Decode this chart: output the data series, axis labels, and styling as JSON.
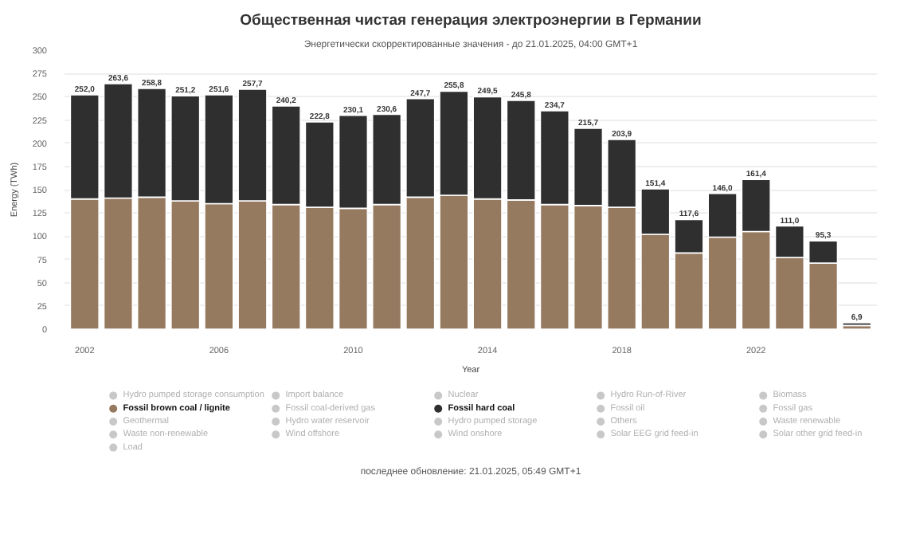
{
  "chart_data": {
    "type": "bar",
    "stacked": true,
    "title": "Общественная чистая генерация электроэнергии в Германии",
    "subtitle": "Энергетически скорректированные значения - до 21.01.2025, 04:00 GMT+1",
    "xlabel": "Year",
    "ylabel": "Energy (TWh)",
    "annotations": [
      "последнее обновление: 21.01.2025, 05:49 GMT+1"
    ],
    "x": [
      2002,
      2003,
      2004,
      2005,
      2006,
      2007,
      2008,
      2009,
      2010,
      2011,
      2012,
      2013,
      2014,
      2015,
      2016,
      2017,
      2018,
      2019,
      2020,
      2021,
      2022,
      2023,
      2024,
      2025
    ],
    "xlim": [
      2001.4,
      2025.6
    ],
    "xticks": [
      2002,
      2006,
      2010,
      2014,
      2018,
      2022
    ],
    "ylim": [
      0,
      300
    ],
    "yticks": [
      0,
      25,
      50,
      75,
      100,
      125,
      150,
      175,
      200,
      225,
      250,
      275,
      300
    ],
    "grid": "y",
    "legend": "bottom",
    "series": [
      {
        "name": "Hydro pumped storage consumption",
        "color": "#c8c8c8",
        "values": [
          null,
          null,
          null,
          null,
          null,
          null,
          null,
          null,
          null,
          null,
          null,
          null,
          null,
          null,
          null,
          null,
          null,
          null,
          null,
          null,
          null,
          null,
          null,
          null
        ]
      },
      {
        "name": "Import balance",
        "color": "#c8c8c8",
        "values": [
          null,
          null,
          null,
          null,
          null,
          null,
          null,
          null,
          null,
          null,
          null,
          null,
          null,
          null,
          null,
          null,
          null,
          null,
          null,
          null,
          null,
          null,
          null,
          null
        ]
      },
      {
        "name": "Nuclear",
        "color": "#c8c8c8",
        "values": [
          null,
          null,
          null,
          null,
          null,
          null,
          null,
          null,
          null,
          null,
          null,
          null,
          null,
          null,
          null,
          null,
          null,
          null,
          null,
          null,
          null,
          null,
          null,
          null
        ]
      },
      {
        "name": "Hydro Run-of-River",
        "color": "#c8c8c8",
        "values": [
          null,
          null,
          null,
          null,
          null,
          null,
          null,
          null,
          null,
          null,
          null,
          null,
          null,
          null,
          null,
          null,
          null,
          null,
          null,
          null,
          null,
          null,
          null,
          null
        ]
      },
      {
        "name": "Biomass",
        "color": "#c8c8c8",
        "values": [
          null,
          null,
          null,
          null,
          null,
          null,
          null,
          null,
          null,
          null,
          null,
          null,
          null,
          null,
          null,
          null,
          null,
          null,
          null,
          null,
          null,
          null,
          null,
          null
        ]
      },
      {
        "name": "Fossil brown coal / lignite",
        "color": "#957a60",
        "values": [
          140,
          141,
          142,
          138,
          135,
          138,
          134,
          131,
          130,
          134,
          142,
          144,
          140,
          139,
          134,
          133,
          131,
          102,
          82,
          99,
          105,
          77,
          71,
          4
        ]
      },
      {
        "name": "Fossil coal-derived gas",
        "color": "#c8c8c8",
        "values": [
          null,
          null,
          null,
          null,
          null,
          null,
          null,
          null,
          null,
          null,
          null,
          null,
          null,
          null,
          null,
          null,
          null,
          null,
          null,
          null,
          null,
          null,
          null,
          null
        ]
      },
      {
        "name": "Fossil hard coal",
        "color": "#2f2f2f",
        "values": [
          112,
          123,
          117,
          113,
          117,
          120,
          106,
          92,
          100,
          97,
          106,
          112,
          110,
          107,
          101,
          83,
          73,
          49,
          36,
          47,
          56,
          34,
          24,
          3
        ]
      },
      {
        "name": "Fossil oil",
        "color": "#c8c8c8",
        "values": [
          null,
          null,
          null,
          null,
          null,
          null,
          null,
          null,
          null,
          null,
          null,
          null,
          null,
          null,
          null,
          null,
          null,
          null,
          null,
          null,
          null,
          null,
          null,
          null
        ]
      },
      {
        "name": "Fossil gas",
        "color": "#c8c8c8",
        "values": [
          null,
          null,
          null,
          null,
          null,
          null,
          null,
          null,
          null,
          null,
          null,
          null,
          null,
          null,
          null,
          null,
          null,
          null,
          null,
          null,
          null,
          null,
          null,
          null
        ]
      },
      {
        "name": "Geothermal",
        "color": "#c8c8c8",
        "values": [
          null,
          null,
          null,
          null,
          null,
          null,
          null,
          null,
          null,
          null,
          null,
          null,
          null,
          null,
          null,
          null,
          null,
          null,
          null,
          null,
          null,
          null,
          null,
          null
        ]
      },
      {
        "name": "Hydro water reservoir",
        "color": "#c8c8c8",
        "values": [
          null,
          null,
          null,
          null,
          null,
          null,
          null,
          null,
          null,
          null,
          null,
          null,
          null,
          null,
          null,
          null,
          null,
          null,
          null,
          null,
          null,
          null,
          null,
          null
        ]
      },
      {
        "name": "Hydro pumped storage",
        "color": "#c8c8c8",
        "values": [
          null,
          null,
          null,
          null,
          null,
          null,
          null,
          null,
          null,
          null,
          null,
          null,
          null,
          null,
          null,
          null,
          null,
          null,
          null,
          null,
          null,
          null,
          null,
          null
        ]
      },
      {
        "name": "Others",
        "color": "#c8c8c8",
        "values": [
          null,
          null,
          null,
          null,
          null,
          null,
          null,
          null,
          null,
          null,
          null,
          null,
          null,
          null,
          null,
          null,
          null,
          null,
          null,
          null,
          null,
          null,
          null,
          null
        ]
      },
      {
        "name": "Waste renewable",
        "color": "#c8c8c8",
        "values": [
          null,
          null,
          null,
          null,
          null,
          null,
          null,
          null,
          null,
          null,
          null,
          null,
          null,
          null,
          null,
          null,
          null,
          null,
          null,
          null,
          null,
          null,
          null,
          null
        ]
      },
      {
        "name": "Waste non-renewable",
        "color": "#c8c8c8",
        "values": [
          null,
          null,
          null,
          null,
          null,
          null,
          null,
          null,
          null,
          null,
          null,
          null,
          null,
          null,
          null,
          null,
          null,
          null,
          null,
          null,
          null,
          null,
          null,
          null
        ]
      },
      {
        "name": "Wind offshore",
        "color": "#c8c8c8",
        "values": [
          null,
          null,
          null,
          null,
          null,
          null,
          null,
          null,
          null,
          null,
          null,
          null,
          null,
          null,
          null,
          null,
          null,
          null,
          null,
          null,
          null,
          null,
          null,
          null
        ]
      },
      {
        "name": "Wind onshore",
        "color": "#c8c8c8",
        "values": [
          null,
          null,
          null,
          null,
          null,
          null,
          null,
          null,
          null,
          null,
          null,
          null,
          null,
          null,
          null,
          null,
          null,
          null,
          null,
          null,
          null,
          null,
          null,
          null
        ]
      },
      {
        "name": "Solar EEG grid feed-in",
        "color": "#c8c8c8",
        "values": [
          null,
          null,
          null,
          null,
          null,
          null,
          null,
          null,
          null,
          null,
          null,
          null,
          null,
          null,
          null,
          null,
          null,
          null,
          null,
          null,
          null,
          null,
          null,
          null
        ]
      },
      {
        "name": "Solar other grid feed-in",
        "color": "#c8c8c8",
        "values": [
          null,
          null,
          null,
          null,
          null,
          null,
          null,
          null,
          null,
          null,
          null,
          null,
          null,
          null,
          null,
          null,
          null,
          null,
          null,
          null,
          null,
          null,
          null,
          null
        ]
      },
      {
        "name": "Load",
        "color": "#c8c8c8",
        "values": [
          null,
          null,
          null,
          null,
          null,
          null,
          null,
          null,
          null,
          null,
          null,
          null,
          null,
          null,
          null,
          null,
          null,
          null,
          null,
          null,
          null,
          null,
          null,
          null
        ]
      }
    ],
    "totals": [
      "252,0",
      "263,6",
      "258,8",
      "251,2",
      "251,6",
      "257,7",
      "240,2",
      "222,8",
      "230,1",
      "230,6",
      "247,7",
      "255,8",
      "249,5",
      "245,8",
      "234,7",
      "215,7",
      "203,9",
      "151,4",
      "117,6",
      "146,0",
      "161,4",
      "111,0",
      "95,3",
      "6,9"
    ]
  }
}
